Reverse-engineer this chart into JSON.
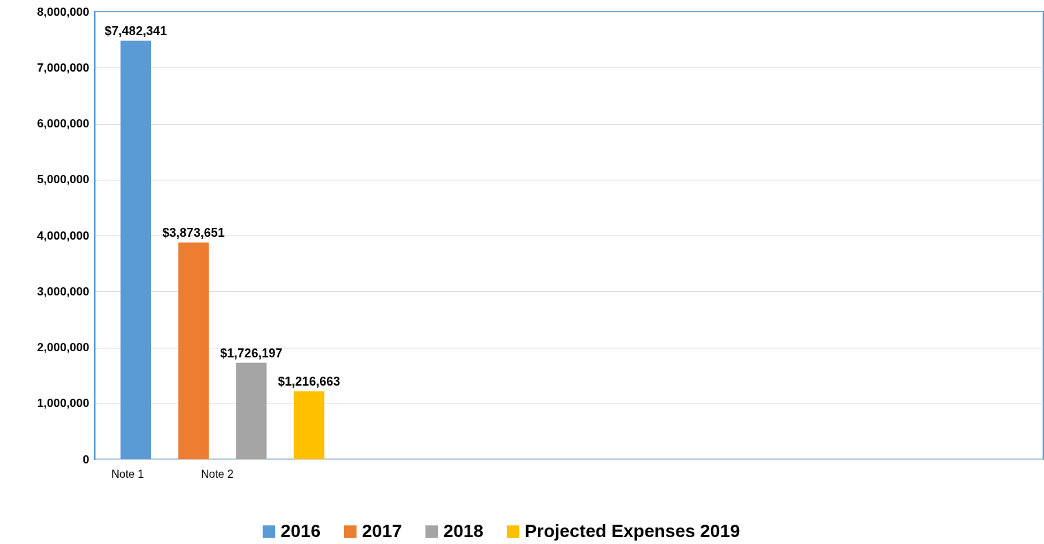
{
  "chart_data": {
    "type": "bar",
    "categories": [
      null
    ],
    "series": [
      {
        "name": "2016",
        "color": "#5b9bd5",
        "values": [
          7482341
        ],
        "value_labels": [
          "$7,482,341"
        ]
      },
      {
        "name": "2017",
        "color": "#ed7d31",
        "values": [
          3873651
        ],
        "value_labels": [
          "$3,873,651"
        ]
      },
      {
        "name": "2018",
        "color": "#a5a5a5",
        "values": [
          1726197
        ],
        "value_labels": [
          "$1,726,197"
        ]
      },
      {
        "name": "Projected Expenses 2019",
        "color": "#ffc000",
        "values": [
          1216663
        ],
        "value_labels": [
          "$1,216,663"
        ]
      }
    ],
    "ylim": [
      0,
      8000000
    ],
    "yticks": [
      0,
      {
        "value": 1000000,
        "label": "1,000,000"
      },
      {
        "value": 2000000,
        "label": "2,000,000"
      },
      {
        "value": 3000000,
        "label": "3,000,000"
      },
      {
        "value": 4000000,
        "label": "4,000,000"
      },
      {
        "value": 5000000,
        "label": "5,000,000"
      },
      {
        "value": 6000000,
        "label": "6,000,000"
      },
      {
        "value": 7000000,
        "label": "7,000,000"
      },
      {
        "value": 8000000,
        "label": "8,000,000"
      }
    ],
    "grid": "y",
    "legend": "bottom",
    "annotations": [
      "Note 1",
      "Note  2"
    ]
  }
}
